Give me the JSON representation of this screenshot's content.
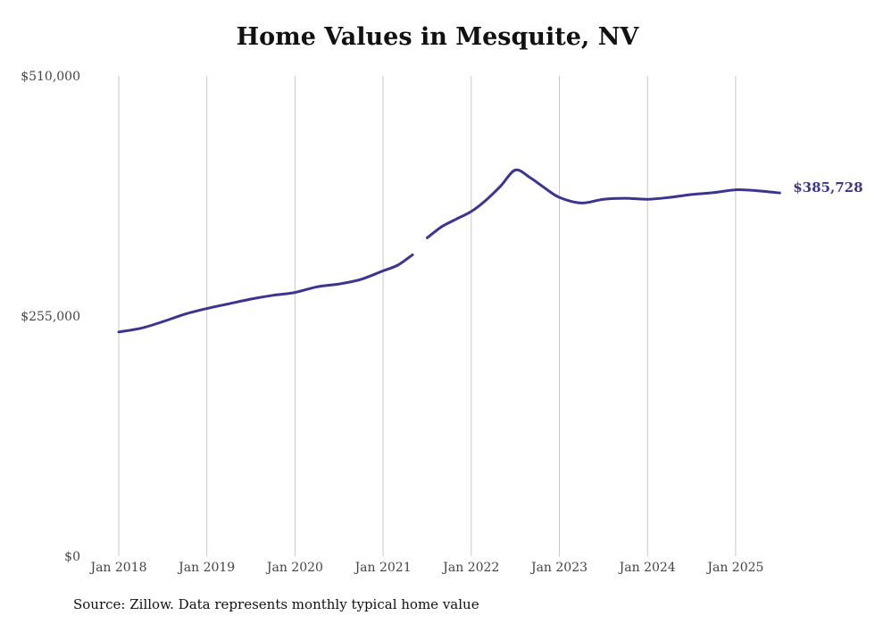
{
  "title": "Home Values in Mesquite, NV",
  "source": "Source: Zillow. Data represents monthly typical home value",
  "colors": {
    "line": "#3b3591",
    "grid": "#c8c8c8",
    "text": "#111111"
  },
  "chart_data": {
    "type": "line",
    "title": "Home Values in Mesquite, NV",
    "xlabel": "",
    "ylabel": "",
    "grid": "vertical",
    "ylim": [
      0,
      510000
    ],
    "y_ticks": [
      {
        "value": 0,
        "label": "$0"
      },
      {
        "value": 255000,
        "label": "$255,000"
      },
      {
        "value": 510000,
        "label": "$510,000"
      }
    ],
    "x_ticks": [
      {
        "value": "2018-01",
        "label": "Jan 2018"
      },
      {
        "value": "2019-01",
        "label": "Jan 2019"
      },
      {
        "value": "2020-01",
        "label": "Jan 2020"
      },
      {
        "value": "2021-01",
        "label": "Jan 2021"
      },
      {
        "value": "2022-01",
        "label": "Jan 2022"
      },
      {
        "value": "2023-01",
        "label": "Jan 2023"
      },
      {
        "value": "2024-01",
        "label": "Jan 2024"
      },
      {
        "value": "2025-01",
        "label": "Jan 2025"
      }
    ],
    "end_label": "$385,728",
    "series": [
      {
        "segments": [
          [
            [
              "2018-01",
              238000
            ],
            [
              "2018-04",
              242000
            ],
            [
              "2018-07",
              249000
            ],
            [
              "2018-10",
              257000
            ],
            [
              "2019-01",
              263000
            ],
            [
              "2019-04",
              268000
            ],
            [
              "2019-07",
              273000
            ],
            [
              "2019-10",
              277000
            ],
            [
              "2020-01",
              280000
            ],
            [
              "2020-04",
              286000
            ],
            [
              "2020-07",
              289000
            ],
            [
              "2020-10",
              294000
            ],
            [
              "2021-01",
              303000
            ],
            [
              "2021-03",
              309000
            ],
            [
              "2021-05",
              320000
            ]
          ],
          [
            [
              "2021-07",
              338000
            ],
            [
              "2021-09",
              350000
            ],
            [
              "2021-11",
              358000
            ],
            [
              "2022-01",
              366000
            ],
            [
              "2022-03",
              378000
            ],
            [
              "2022-05",
              393000
            ],
            [
              "2022-07",
              410000
            ],
            [
              "2022-09",
              402000
            ],
            [
              "2022-11",
              391000
            ],
            [
              "2023-01",
              381000
            ],
            [
              "2023-04",
              375000
            ],
            [
              "2023-07",
              379000
            ],
            [
              "2023-10",
              380000
            ],
            [
              "2024-01",
              379000
            ],
            [
              "2024-04",
              381000
            ],
            [
              "2024-07",
              384000
            ],
            [
              "2024-10",
              386000
            ],
            [
              "2025-01",
              389000
            ],
            [
              "2025-04",
              388000
            ],
            [
              "2025-07",
              385728
            ]
          ]
        ]
      }
    ]
  }
}
